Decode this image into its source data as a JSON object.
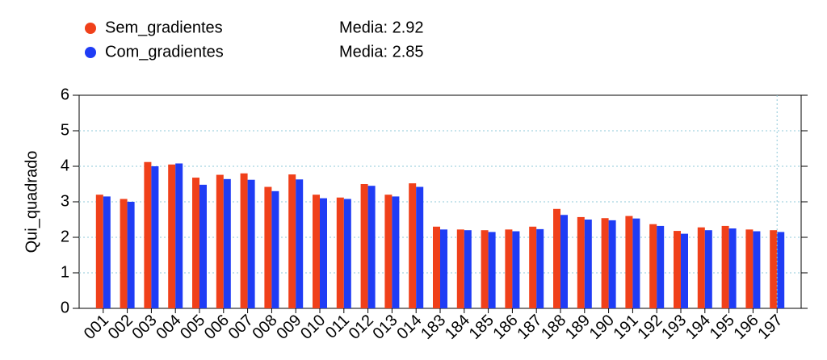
{
  "chart_data": {
    "type": "bar",
    "categories": [
      "001",
      "002",
      "003",
      "004",
      "005",
      "006",
      "007",
      "008",
      "009",
      "010",
      "011",
      "012",
      "013",
      "014",
      "183",
      "184",
      "185",
      "186",
      "187",
      "188",
      "189",
      "190",
      "191",
      "192",
      "193",
      "194",
      "195",
      "196",
      "197"
    ],
    "series": [
      {
        "name": "Sem_gradientes",
        "color": "#f0401a",
        "media": "Media: 2.92",
        "values": [
          3.2,
          3.08,
          4.12,
          4.05,
          3.68,
          3.76,
          3.8,
          3.42,
          3.77,
          3.2,
          3.12,
          3.5,
          3.2,
          3.52,
          2.3,
          2.22,
          2.2,
          2.22,
          2.3,
          2.8,
          2.57,
          2.54,
          2.6,
          2.37,
          2.18,
          2.28,
          2.32,
          2.22,
          2.2
        ]
      },
      {
        "name": "Com_gradientes",
        "color": "#1f3cf5",
        "media": "Media: 2.85",
        "values": [
          3.15,
          3.0,
          4.0,
          4.08,
          3.48,
          3.64,
          3.62,
          3.3,
          3.63,
          3.1,
          3.08,
          3.45,
          3.15,
          3.42,
          2.22,
          2.2,
          2.15,
          2.17,
          2.23,
          2.63,
          2.5,
          2.48,
          2.53,
          2.32,
          2.1,
          2.2,
          2.25,
          2.17,
          2.15
        ]
      }
    ],
    "y_label": "Qui_quadrado",
    "ylim": [
      0,
      6
    ],
    "yticks": [
      0,
      1,
      2,
      3,
      4,
      5,
      6
    ],
    "grid": true
  }
}
